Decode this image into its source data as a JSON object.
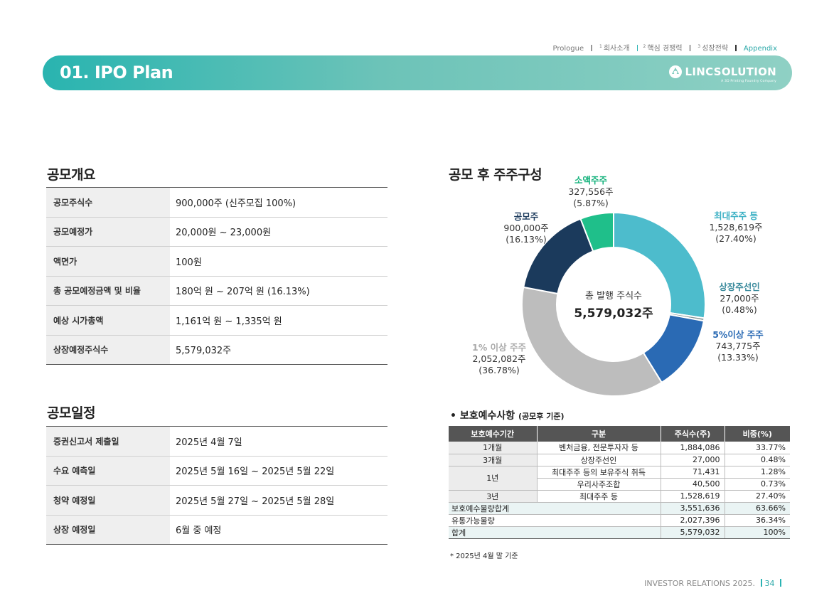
{
  "nav": {
    "prologue": "Prologue",
    "item1_num": "1",
    "item1": "회사소개",
    "item2_num": "2",
    "item2": "핵심 경쟁력",
    "item3_num": "3",
    "item3": "성장전략",
    "appendix": "Appendix"
  },
  "banner": {
    "title": "01. IPO Plan",
    "brand_name": "LINCSOLUTION",
    "brand_tagline": "A 3D Printing Foundry Company"
  },
  "overview": {
    "heading": "공모개요",
    "rows": [
      {
        "key": "공모주식수",
        "value": "900,000주 (신주모집 100%)"
      },
      {
        "key": "공모예정가",
        "value": "20,000원 ~ 23,000원"
      },
      {
        "key": "액면가",
        "value": "100원"
      },
      {
        "key": "총 공모예정금액 및 비율",
        "value": "180억 원 ~ 207억 원 (16.13%)"
      },
      {
        "key": "예상 시가총액",
        "value": "1,161억 원 ~ 1,335억 원"
      },
      {
        "key": "상장예정주식수",
        "value": "5,579,032주"
      }
    ]
  },
  "schedule": {
    "heading": "공모일정",
    "rows": [
      {
        "key": "증권신고서 제출일",
        "value": "2025년 4월 7일"
      },
      {
        "key": "수요 예측일",
        "value": "2025년 5월 16일 ~ 2025년 5월 22일"
      },
      {
        "key": "청약 예정일",
        "value": "2025년 5월 27일 ~ 2025년 5월 28일"
      },
      {
        "key": "상장 예정일",
        "value": "6월 중 예정"
      }
    ]
  },
  "chart_heading": "공모 후 주주구성",
  "chart_data": {
    "type": "pie",
    "title": "공모 후 주주구성",
    "center_label": "총 발행 주식수",
    "center_value": "5,579,032주",
    "slices": [
      {
        "name": "최대주주 등",
        "shares": "1,528,619주",
        "pct_label": "(27.40%)",
        "value": 27.4,
        "color": "#4dbccc"
      },
      {
        "name": "상장주선인",
        "shares": "27,000주",
        "pct_label": "(0.48%)",
        "value": 0.48,
        "color": "#8a9a9a"
      },
      {
        "name": "5%이상 주주",
        "shares": "743,775주",
        "pct_label": "(13.33%)",
        "value": 13.33,
        "color": "#2a6ab4"
      },
      {
        "name": "1% 이상 주주",
        "shares": "2,052,082주",
        "pct_label": "(36.78%)",
        "value": 36.78,
        "color": "#bdbdbd"
      },
      {
        "name": "공모주",
        "shares": "900,000주",
        "pct_label": "(16.13%)",
        "value": 16.13,
        "color": "#1b3a5c"
      },
      {
        "name": "소액주주",
        "shares": "327,556주",
        "pct_label": "(5.87%)",
        "value": 5.87,
        "color": "#1fbf8a"
      }
    ]
  },
  "lockup": {
    "title": "보호예수사항",
    "title_sub": "(공모후 기준)",
    "headers": [
      "보호예수기간",
      "구분",
      "주식수(주)",
      "비중(%)"
    ],
    "rows": [
      {
        "period": "1개월",
        "category": "벤처금융, 전문투자자 등",
        "shares": "1,884,086",
        "ratio": "33.77%"
      },
      {
        "period": "3개월",
        "category": "상장주선인",
        "shares": "27,000",
        "ratio": "0.48%"
      },
      {
        "period": "1년",
        "category": "최대주주 등의 보유주식 취득",
        "shares": "71,431",
        "ratio": "1.28%"
      },
      {
        "period": "",
        "category": "우리사주조합",
        "shares": "40,500",
        "ratio": "0.73%"
      },
      {
        "period": "3년",
        "category": "최대주주 등",
        "shares": "1,528,619",
        "ratio": "27.40%"
      }
    ],
    "totals": [
      {
        "label": "보호예수물량합계",
        "shares": "3,551,636",
        "ratio": "63.66%"
      },
      {
        "label": "유통가능물량",
        "shares": "2,027,396",
        "ratio": "36.34%"
      },
      {
        "label": "합계",
        "shares": "5,579,032",
        "ratio": "100%"
      }
    ],
    "note": "* 2025년 4월 말 기준"
  },
  "footer": {
    "text": "INVESTOR RELATIONS 2025.",
    "page": "34"
  }
}
